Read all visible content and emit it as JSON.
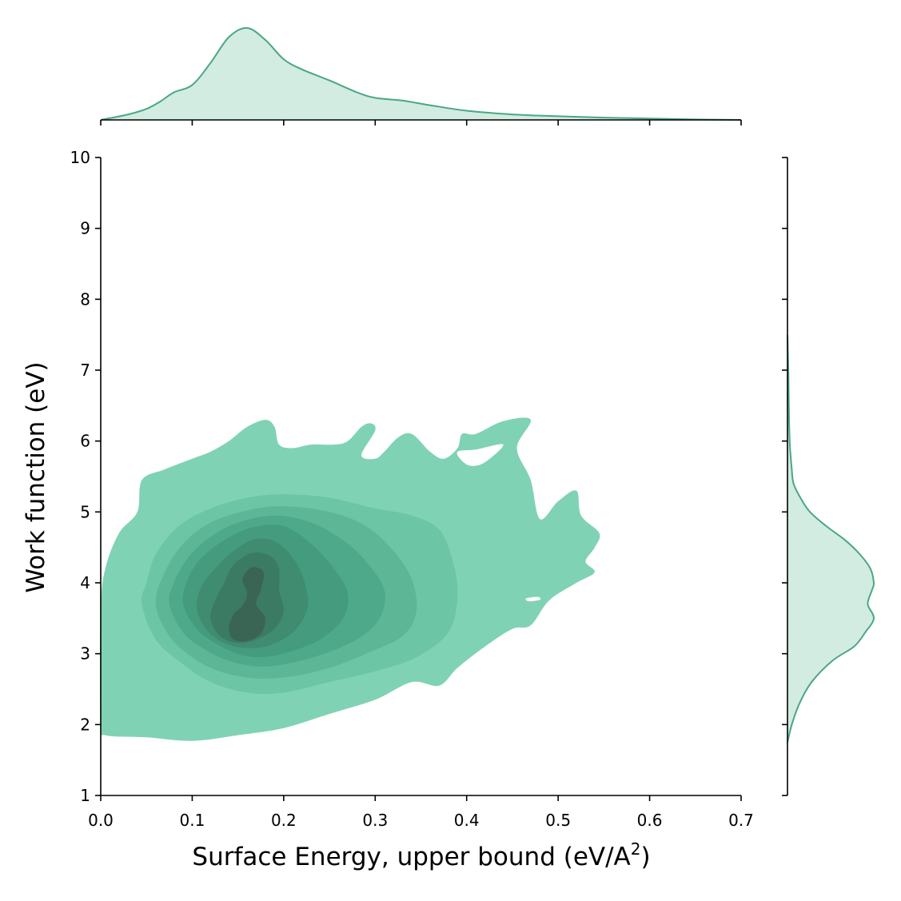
{
  "chart_data": {
    "type": "kde_jointplot",
    "xlabel_main": "Surface Energy, upper bound (eV/A",
    "xlabel_sup": "2",
    "xlabel_close": ")",
    "ylabel": "Work function (eV)",
    "xlim": [
      0.0,
      0.7
    ],
    "ylim": [
      1,
      10
    ],
    "x_ticks": [
      "0.0",
      "0.1",
      "0.2",
      "0.3",
      "0.4",
      "0.5",
      "0.6",
      "0.7"
    ],
    "y_ticks": [
      "1",
      "2",
      "3",
      "4",
      "5",
      "6",
      "7",
      "8",
      "9",
      "10"
    ],
    "colors": {
      "levels": [
        "#7fd3b4",
        "#6cc5a4",
        "#5db797",
        "#4ea98a",
        "#449b7e",
        "#3f8c71",
        "#3c7b63",
        "#3a6554"
      ],
      "marginal_line": "#4aa783",
      "marginal_fill": "#d2ece1"
    },
    "density_peak": {
      "x": 0.16,
      "y": 3.4
    },
    "levels": [
      {
        "level": 1,
        "points": [
          [
            0.0,
            2.0
          ],
          [
            0.005,
            1.85
          ],
          [
            0.05,
            1.82
          ],
          [
            0.1,
            1.77
          ],
          [
            0.15,
            1.85
          ],
          [
            0.2,
            1.95
          ],
          [
            0.25,
            2.15
          ],
          [
            0.3,
            2.35
          ],
          [
            0.34,
            2.6
          ],
          [
            0.37,
            2.55
          ],
          [
            0.39,
            2.8
          ],
          [
            0.42,
            3.1
          ],
          [
            0.45,
            3.35
          ],
          [
            0.47,
            3.4
          ],
          [
            0.49,
            3.75
          ],
          [
            0.52,
            4.0
          ],
          [
            0.54,
            4.15
          ],
          [
            0.53,
            4.3
          ],
          [
            0.54,
            4.5
          ],
          [
            0.545,
            4.7
          ],
          [
            0.525,
            4.95
          ],
          [
            0.52,
            5.3
          ],
          [
            0.5,
            5.15
          ],
          [
            0.48,
            4.9
          ],
          [
            0.47,
            5.45
          ],
          [
            0.455,
            5.9
          ],
          [
            0.47,
            6.3
          ],
          [
            0.44,
            6.28
          ],
          [
            0.41,
            6.1
          ],
          [
            0.395,
            6.1
          ],
          [
            0.39,
            5.9
          ],
          [
            0.375,
            5.75
          ],
          [
            0.36,
            5.85
          ],
          [
            0.34,
            6.1
          ],
          [
            0.325,
            6.05
          ],
          [
            0.31,
            5.85
          ],
          [
            0.3,
            5.75
          ],
          [
            0.285,
            5.8
          ],
          [
            0.3,
            6.15
          ],
          [
            0.295,
            6.25
          ],
          [
            0.285,
            6.2
          ],
          [
            0.27,
            6.0
          ],
          [
            0.255,
            5.95
          ],
          [
            0.23,
            5.95
          ],
          [
            0.21,
            5.9
          ],
          [
            0.195,
            5.95
          ],
          [
            0.19,
            6.2
          ],
          [
            0.18,
            6.3
          ],
          [
            0.16,
            6.2
          ],
          [
            0.14,
            6.0
          ],
          [
            0.12,
            5.85
          ],
          [
            0.1,
            5.75
          ],
          [
            0.07,
            5.6
          ],
          [
            0.045,
            5.45
          ],
          [
            0.04,
            5.0
          ],
          [
            0.02,
            4.7
          ],
          [
            0.005,
            4.2
          ],
          [
            0.0,
            3.6
          ]
        ]
      },
      {
        "level": 2,
        "points": [
          [
            0.045,
            3.7
          ],
          [
            0.06,
            3.2
          ],
          [
            0.09,
            2.85
          ],
          [
            0.12,
            2.6
          ],
          [
            0.16,
            2.45
          ],
          [
            0.2,
            2.45
          ],
          [
            0.25,
            2.6
          ],
          [
            0.3,
            2.75
          ],
          [
            0.345,
            2.95
          ],
          [
            0.38,
            3.3
          ],
          [
            0.39,
            3.8
          ],
          [
            0.385,
            4.3
          ],
          [
            0.37,
            4.75
          ],
          [
            0.34,
            4.95
          ],
          [
            0.3,
            5.05
          ],
          [
            0.25,
            5.2
          ],
          [
            0.2,
            5.25
          ],
          [
            0.16,
            5.2
          ],
          [
            0.12,
            5.05
          ],
          [
            0.085,
            4.8
          ],
          [
            0.06,
            4.4
          ],
          [
            0.05,
            4.0
          ]
        ]
      },
      {
        "level": 3,
        "points": [
          [
            0.06,
            3.7
          ],
          [
            0.075,
            3.25
          ],
          [
            0.1,
            2.95
          ],
          [
            0.13,
            2.75
          ],
          [
            0.17,
            2.65
          ],
          [
            0.21,
            2.68
          ],
          [
            0.25,
            2.8
          ],
          [
            0.29,
            3.0
          ],
          [
            0.33,
            3.25
          ],
          [
            0.345,
            3.6
          ],
          [
            0.34,
            4.05
          ],
          [
            0.32,
            4.45
          ],
          [
            0.29,
            4.8
          ],
          [
            0.25,
            5.0
          ],
          [
            0.2,
            5.08
          ],
          [
            0.16,
            5.02
          ],
          [
            0.12,
            4.85
          ],
          [
            0.09,
            4.55
          ],
          [
            0.07,
            4.15
          ]
        ]
      },
      {
        "level": 4,
        "points": [
          [
            0.075,
            3.7
          ],
          [
            0.09,
            3.3
          ],
          [
            0.115,
            3.05
          ],
          [
            0.14,
            2.9
          ],
          [
            0.17,
            2.82
          ],
          [
            0.2,
            2.85
          ],
          [
            0.24,
            2.98
          ],
          [
            0.28,
            3.2
          ],
          [
            0.305,
            3.5
          ],
          [
            0.31,
            3.9
          ],
          [
            0.29,
            4.3
          ],
          [
            0.265,
            4.6
          ],
          [
            0.23,
            4.85
          ],
          [
            0.19,
            4.95
          ],
          [
            0.15,
            4.85
          ],
          [
            0.12,
            4.65
          ],
          [
            0.095,
            4.35
          ],
          [
            0.08,
            4.0
          ]
        ]
      },
      {
        "level": 5,
        "points": [
          [
            0.09,
            3.7
          ],
          [
            0.105,
            3.35
          ],
          [
            0.125,
            3.15
          ],
          [
            0.15,
            3.0
          ],
          [
            0.175,
            2.95
          ],
          [
            0.205,
            3.02
          ],
          [
            0.24,
            3.2
          ],
          [
            0.265,
            3.5
          ],
          [
            0.27,
            3.85
          ],
          [
            0.255,
            4.2
          ],
          [
            0.23,
            4.55
          ],
          [
            0.2,
            4.8
          ],
          [
            0.165,
            4.78
          ],
          [
            0.135,
            4.6
          ],
          [
            0.11,
            4.35
          ],
          [
            0.095,
            4.05
          ]
        ]
      },
      {
        "level": 6,
        "points": [
          [
            0.105,
            3.65
          ],
          [
            0.115,
            3.35
          ],
          [
            0.135,
            3.15
          ],
          [
            0.16,
            3.08
          ],
          [
            0.185,
            3.12
          ],
          [
            0.21,
            3.3
          ],
          [
            0.225,
            3.6
          ],
          [
            0.225,
            3.9
          ],
          [
            0.215,
            4.25
          ],
          [
            0.195,
            4.55
          ],
          [
            0.17,
            4.62
          ],
          [
            0.145,
            4.45
          ],
          [
            0.125,
            4.2
          ],
          [
            0.11,
            3.95
          ]
        ]
      },
      {
        "level": 7,
        "points": [
          [
            0.12,
            3.5
          ],
          [
            0.13,
            3.25
          ],
          [
            0.15,
            3.15
          ],
          [
            0.17,
            3.2
          ],
          [
            0.19,
            3.35
          ],
          [
            0.2,
            3.6
          ],
          [
            0.195,
            3.9
          ],
          [
            0.195,
            4.2
          ],
          [
            0.185,
            4.38
          ],
          [
            0.165,
            4.42
          ],
          [
            0.145,
            4.25
          ],
          [
            0.135,
            4.0
          ],
          [
            0.125,
            3.75
          ]
        ]
      },
      {
        "level": 8,
        "points": [
          [
            0.14,
            3.35
          ],
          [
            0.145,
            3.2
          ],
          [
            0.16,
            3.18
          ],
          [
            0.175,
            3.28
          ],
          [
            0.18,
            3.5
          ],
          [
            0.17,
            3.7
          ],
          [
            0.175,
            3.9
          ],
          [
            0.178,
            4.15
          ],
          [
            0.165,
            4.22
          ],
          [
            0.155,
            4.05
          ],
          [
            0.16,
            3.85
          ],
          [
            0.155,
            3.68
          ],
          [
            0.145,
            3.55
          ]
        ]
      }
    ],
    "holes": [
      {
        "points": [
          [
            0.39,
            5.85
          ],
          [
            0.41,
            5.88
          ],
          [
            0.44,
            5.95
          ],
          [
            0.42,
            5.7
          ],
          [
            0.405,
            5.65
          ],
          [
            0.395,
            5.72
          ]
        ]
      },
      {
        "points": [
          [
            0.465,
            3.78
          ],
          [
            0.478,
            3.8
          ],
          [
            0.48,
            3.76
          ],
          [
            0.468,
            3.74
          ]
        ]
      }
    ],
    "marginal_x": {
      "x": [
        0.0,
        0.03,
        0.05,
        0.065,
        0.08,
        0.1,
        0.12,
        0.14,
        0.16,
        0.18,
        0.2,
        0.22,
        0.25,
        0.28,
        0.3,
        0.33,
        0.36,
        0.4,
        0.45,
        0.5,
        0.55,
        0.6,
        0.65,
        0.7
      ],
      "density": [
        0.0,
        0.06,
        0.12,
        0.2,
        0.3,
        0.38,
        0.62,
        0.9,
        1.0,
        0.87,
        0.66,
        0.55,
        0.43,
        0.3,
        0.24,
        0.21,
        0.16,
        0.1,
        0.06,
        0.04,
        0.025,
        0.015,
        0.005,
        0.0
      ]
    },
    "marginal_y": {
      "y": [
        1.75,
        2.0,
        2.3,
        2.6,
        2.9,
        3.1,
        3.3,
        3.5,
        3.7,
        3.9,
        4.0,
        4.2,
        4.4,
        4.6,
        4.8,
        5.0,
        5.2,
        5.4,
        5.6,
        5.9,
        6.2,
        6.6,
        7.0,
        7.5
      ],
      "density": [
        0.0,
        0.05,
        0.14,
        0.28,
        0.52,
        0.77,
        0.9,
        1.0,
        0.93,
        0.98,
        1.0,
        0.96,
        0.84,
        0.67,
        0.45,
        0.26,
        0.15,
        0.07,
        0.05,
        0.03,
        0.02,
        0.015,
        0.01,
        0.0
      ]
    }
  }
}
